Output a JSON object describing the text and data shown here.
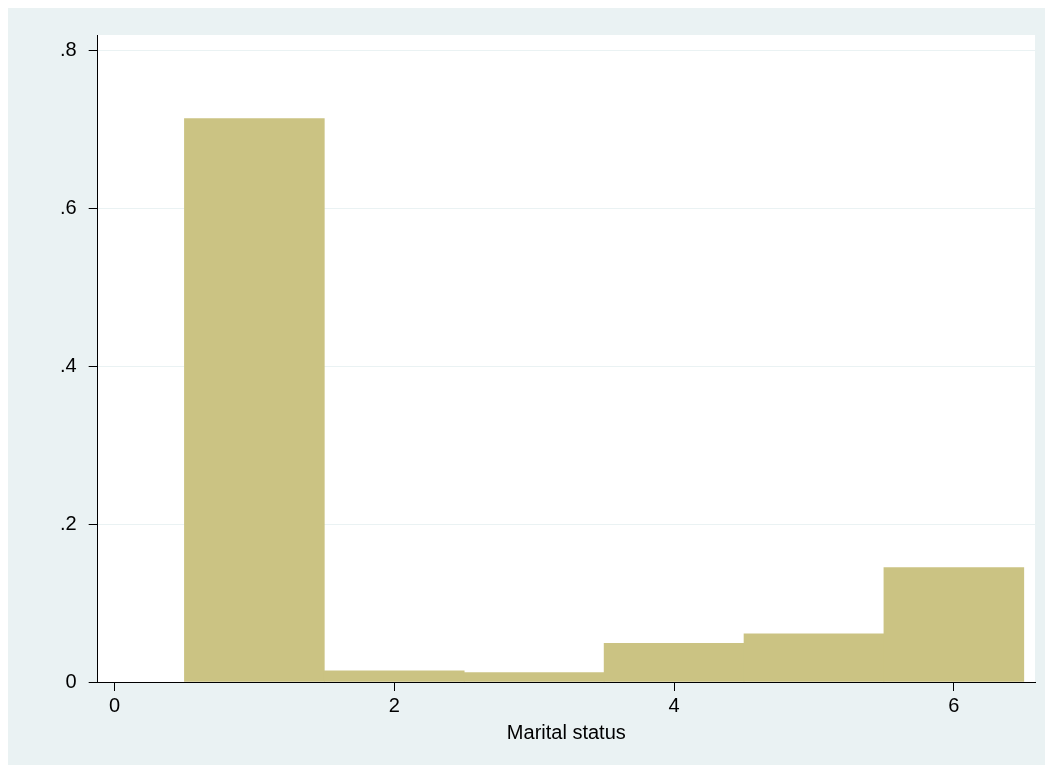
{
  "chart_data": {
    "type": "histogram",
    "xlabel": "Marital status",
    "bins": [
      0.5,
      1.5,
      2.5,
      3.5,
      4.5,
      5.5,
      6.5
    ],
    "values": [
      0.714,
      0.014,
      0.012,
      0.049,
      0.061,
      0.145
    ],
    "color": "#cbc383",
    "xlim": [
      -0.12,
      6.58
    ],
    "xticks": [
      0,
      2,
      4,
      6
    ],
    "ylim": [
      0,
      0.82
    ],
    "yticks": [
      {
        "value": 0,
        "label": "0"
      },
      {
        "value": 0.2,
        "label": ".2"
      },
      {
        "value": 0.4,
        "label": ".4"
      },
      {
        "value": 0.6,
        "label": ".6"
      },
      {
        "value": 0.8,
        "label": ".8"
      }
    ],
    "grid": "y",
    "legend": false
  }
}
